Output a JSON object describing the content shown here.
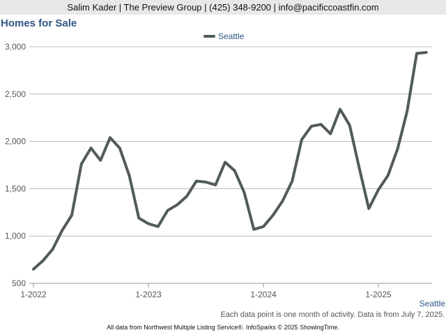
{
  "header": {
    "contact": "Salim Kader | The Preview Group | (425) 348-9200 | info@pacificcoastfin.com"
  },
  "footer": {
    "note": "Each data point is one month of activity. Data is from July 7, 2025.",
    "source": "All data from Northwest Multiple Listing Service®. InfoSparks © 2025 ShowingTime."
  },
  "chart_data": {
    "type": "line",
    "title": "Homes for Sale",
    "xlabel": "",
    "ylabel": "",
    "ylim": [
      500,
      3000
    ],
    "yticks": [
      500,
      1000,
      1500,
      2000,
      2500,
      3000
    ],
    "ytick_labels": [
      "500",
      "1,000",
      "1,500",
      "2,000",
      "2,500",
      "3,000"
    ],
    "xticks": [
      "1-2022",
      "1-2023",
      "1-2024",
      "1-2025"
    ],
    "grid": true,
    "legend_position": "top-center",
    "end_label": "Seattle",
    "series": [
      {
        "name": "Seattle",
        "color": "#515b58",
        "x": [
          "2022-01",
          "2022-02",
          "2022-03",
          "2022-04",
          "2022-05",
          "2022-06",
          "2022-07",
          "2022-08",
          "2022-09",
          "2022-10",
          "2022-11",
          "2022-12",
          "2023-01",
          "2023-02",
          "2023-03",
          "2023-04",
          "2023-05",
          "2023-06",
          "2023-07",
          "2023-08",
          "2023-09",
          "2023-10",
          "2023-11",
          "2023-12",
          "2024-01",
          "2024-02",
          "2024-03",
          "2024-04",
          "2024-05",
          "2024-06",
          "2024-07",
          "2024-08",
          "2024-09",
          "2024-10",
          "2024-11",
          "2024-12",
          "2025-01",
          "2025-02",
          "2025-03",
          "2025-04",
          "2025-05",
          "2025-06"
        ],
        "values": [
          650,
          740,
          860,
          1060,
          1220,
          1760,
          1930,
          1800,
          2040,
          1930,
          1640,
          1190,
          1130,
          1100,
          1270,
          1330,
          1420,
          1580,
          1570,
          1540,
          1780,
          1690,
          1460,
          1070,
          1100,
          1220,
          1370,
          1580,
          2020,
          2160,
          2180,
          2080,
          2340,
          2170,
          1720,
          1290,
          1490,
          1640,
          1920,
          2320,
          2930,
          2940
        ]
      }
    ]
  }
}
